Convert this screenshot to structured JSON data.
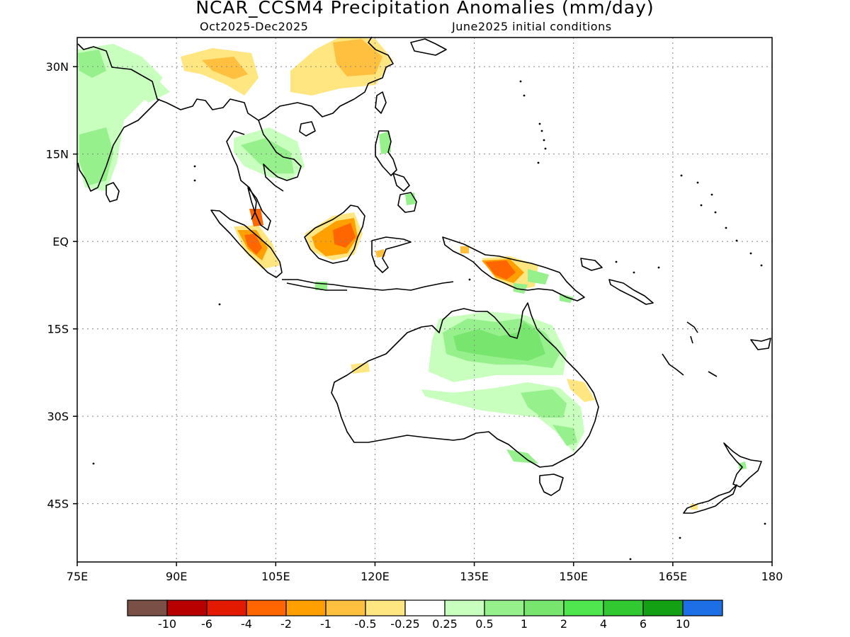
{
  "title": "NCAR_CCSM4 Precipitation Anomalies (mm/day)",
  "subtitle_left": "Oct2025-Dec2025",
  "subtitle_right": "June2025 initial conditions",
  "lat_labels": [
    "30N",
    "15N",
    "EQ",
    "15S",
    "30S",
    "45S"
  ],
  "lat_values": [
    30,
    15,
    0,
    -15,
    -30,
    -45
  ],
  "lon_labels": [
    "75E",
    "90E",
    "105E",
    "120E",
    "135E",
    "150E",
    "165E",
    "180"
  ],
  "lon_values": [
    75,
    90,
    105,
    120,
    135,
    150,
    165,
    180
  ],
  "extent": {
    "lon_min": 75,
    "lon_max": 180,
    "lat_min": -55,
    "lat_max": 35
  },
  "colorbar": {
    "colors": [
      "#7a4f45",
      "#b80000",
      "#e31a00",
      "#ff6600",
      "#ffa000",
      "#ffc040",
      "#ffe680",
      "#ffffff",
      "#c8ffbe",
      "#96f08c",
      "#78e66e",
      "#50e650",
      "#32c832",
      "#14a014",
      "#1e6ee6"
    ],
    "labels": [
      "-10",
      "-6",
      "-4",
      "-2",
      "-1",
      "-0.5",
      "-0.25",
      "0.25",
      "0.5",
      "1",
      "2",
      "4",
      "6",
      "10"
    ]
  },
  "anomaly_colors": {
    "light_green": "#c8ffbe",
    "green": "#96f08c",
    "mid_green": "#78e66e",
    "strong_green": "#50e650",
    "light_orange": "#ffe680",
    "orange": "#ffc040",
    "dark_orange": "#ffa000",
    "red_orange": "#ff6600"
  },
  "grid": true
}
